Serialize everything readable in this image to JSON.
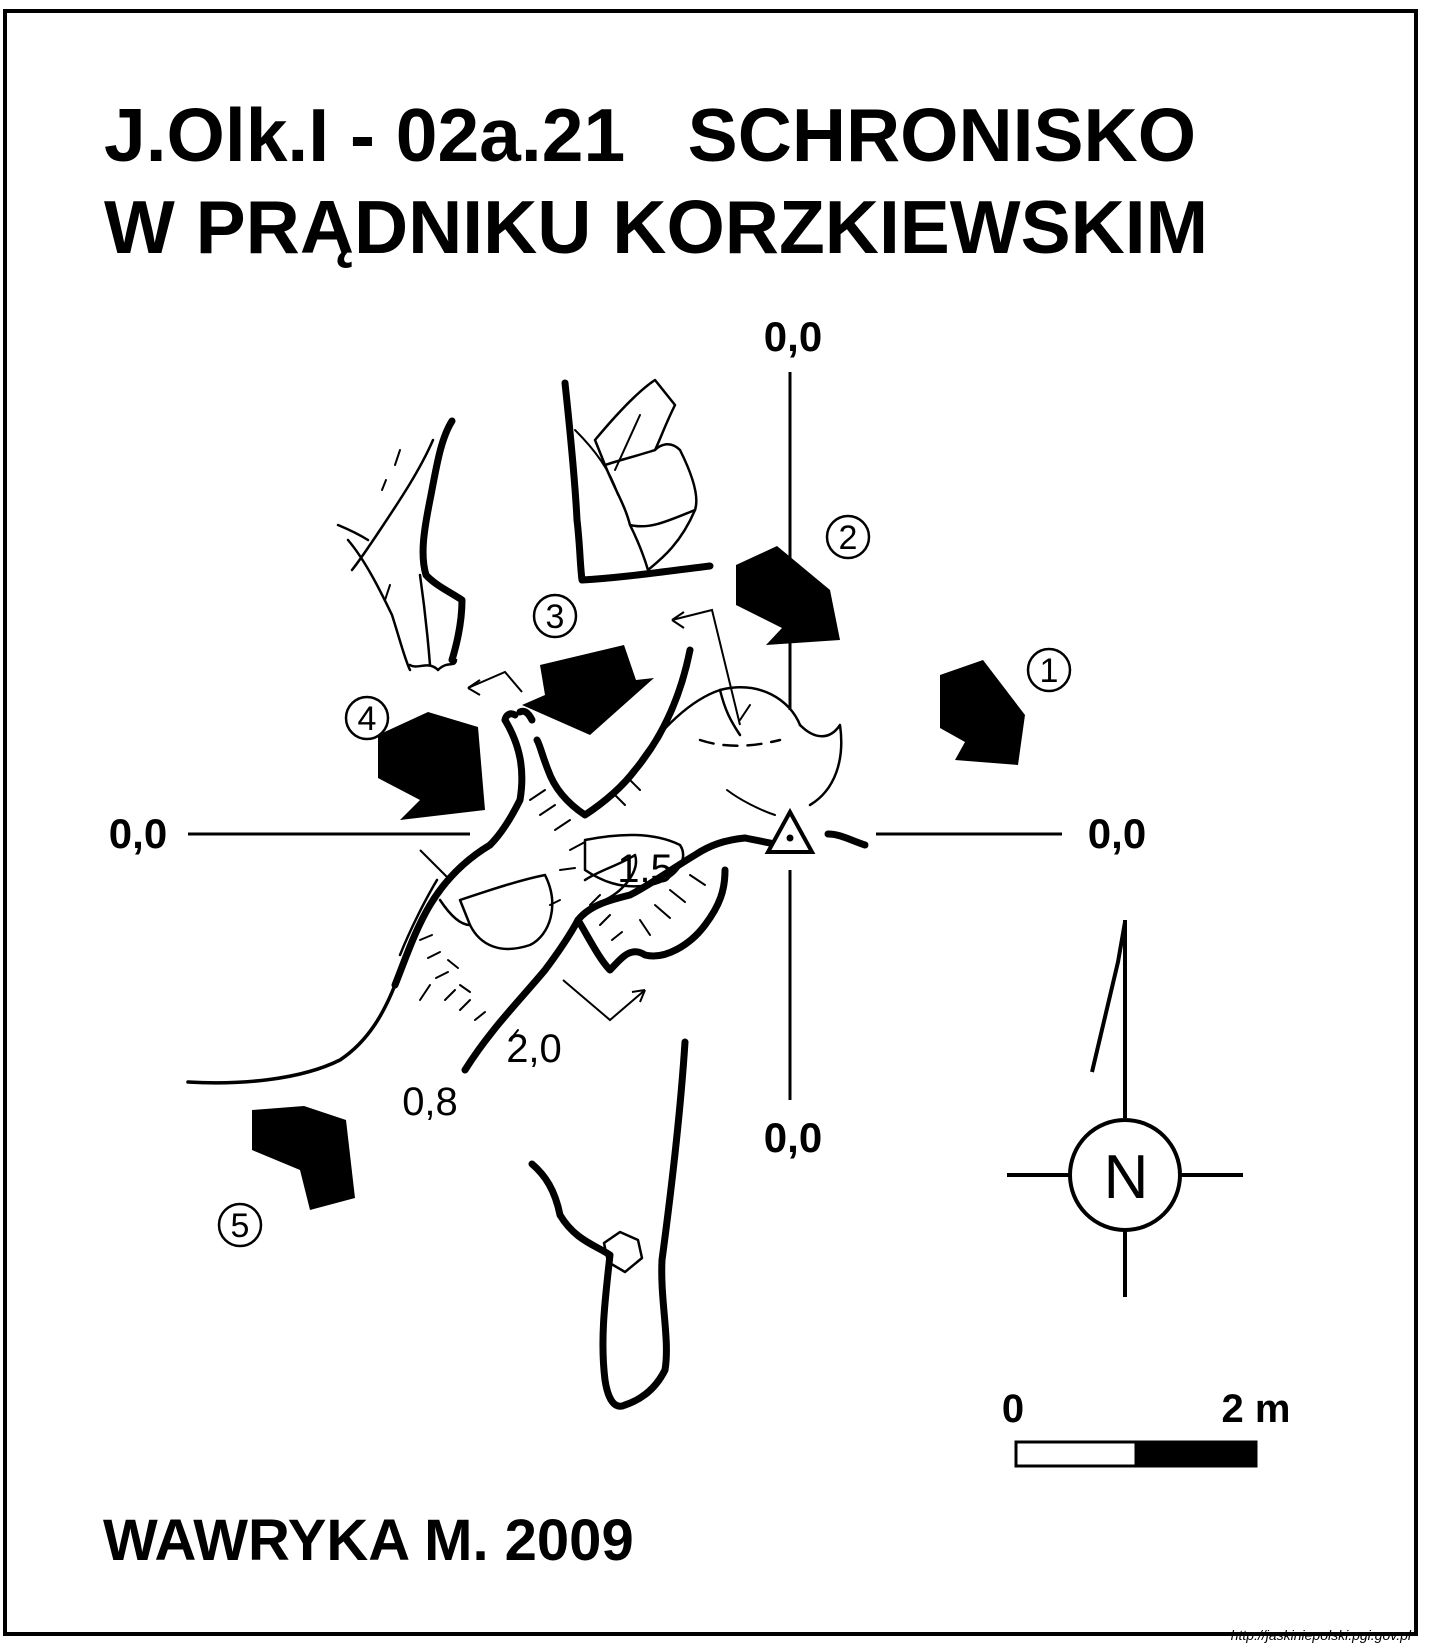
{
  "title": {
    "line1": "J.Olk.I - 02a.21   SCHRONISKO",
    "line2": "W PRĄDNIKU KORZKIEWSKIM"
  },
  "axes": {
    "top": "0,0",
    "left": "0,0",
    "right": "0,0",
    "bottom": "0,0"
  },
  "depths": {
    "d1": "1,5",
    "d2": "2,0",
    "d3": "0,8"
  },
  "cross_sections": [
    "1",
    "2",
    "3",
    "4",
    "5"
  ],
  "north": {
    "letter": "N"
  },
  "scale": {
    "start": "0",
    "end": "2 m"
  },
  "author": "WAWRYKA M. 2009",
  "source_url": "http://jaskiniepolski.pgi.gov.pl",
  "colors": {
    "ink": "#000000",
    "paper": "#ffffff"
  }
}
